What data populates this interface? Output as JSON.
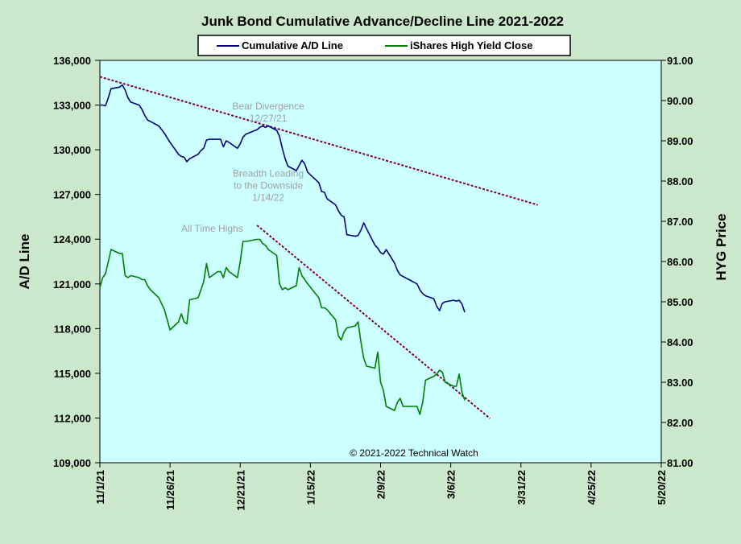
{
  "chart_data": {
    "type": "line",
    "title": "Junk Bond Cumulative Advance/Decline Line 2021-2022",
    "ylabel": "A/D Line",
    "y2label": "HYG Price",
    "ylim": [
      109000,
      136000
    ],
    "y2lim": [
      81.0,
      91.0
    ],
    "xlim": [
      "2021-11-01",
      "2022-05-20"
    ],
    "grid": false,
    "legend": "top-center",
    "colors": {
      "background": "#cce8cc",
      "plot_area": "#ccffff",
      "ad_line": "#00007f",
      "hyg_line": "#007f00",
      "trend_line": "#7f003f",
      "annotation": "#a0a0a0"
    },
    "x_ticks": [
      "11/1/21",
      "11/26/21",
      "12/21/21",
      "1/15/22",
      "2/9/22",
      "3/6/22",
      "3/31/22",
      "4/25/22",
      "5/20/22"
    ],
    "y_ticks": [
      "136,000",
      "133,000",
      "130,000",
      "127,000",
      "124,000",
      "121,000",
      "118,000",
      "115,000",
      "112,000",
      "109,000"
    ],
    "y2_ticks": [
      "91.00",
      "90.00",
      "89.00",
      "88.00",
      "87.00",
      "86.00",
      "85.00",
      "84.00",
      "83.00",
      "82.00",
      "81.00"
    ],
    "series": [
      {
        "name": "Cumulative A/D Line",
        "axis": "left",
        "points": [
          [
            "2021-11-01",
            133000
          ],
          [
            "2021-11-02",
            133000
          ],
          [
            "2021-11-03",
            132950
          ],
          [
            "2021-11-04",
            133500
          ],
          [
            "2021-11-05",
            134100
          ],
          [
            "2021-11-08",
            134200
          ],
          [
            "2021-11-09",
            134350
          ],
          [
            "2021-11-10",
            134000
          ],
          [
            "2021-11-11",
            133500
          ],
          [
            "2021-11-12",
            133200
          ],
          [
            "2021-11-15",
            133000
          ],
          [
            "2021-11-16",
            132700
          ],
          [
            "2021-11-17",
            132300
          ],
          [
            "2021-11-18",
            132000
          ],
          [
            "2021-11-19",
            131900
          ],
          [
            "2021-11-22",
            131600
          ],
          [
            "2021-11-23",
            131350
          ],
          [
            "2021-11-24",
            131100
          ],
          [
            "2021-11-26",
            130500
          ],
          [
            "2021-11-29",
            129700
          ],
          [
            "2021-11-30",
            129550
          ],
          [
            "2021-12-01",
            129500
          ],
          [
            "2021-12-02",
            129200
          ],
          [
            "2021-12-03",
            129400
          ],
          [
            "2021-12-06",
            129700
          ],
          [
            "2021-12-07",
            129950
          ],
          [
            "2021-12-08",
            130100
          ],
          [
            "2021-12-09",
            130650
          ],
          [
            "2021-12-10",
            130700
          ],
          [
            "2021-12-13",
            130700
          ],
          [
            "2021-12-14",
            130700
          ],
          [
            "2021-12-15",
            130200
          ],
          [
            "2021-12-16",
            130600
          ],
          [
            "2021-12-17",
            130500
          ],
          [
            "2021-12-20",
            130100
          ],
          [
            "2021-12-21",
            130400
          ],
          [
            "2021-12-22",
            130850
          ],
          [
            "2021-12-23",
            131050
          ],
          [
            "2021-12-27",
            131350
          ],
          [
            "2021-12-28",
            131500
          ],
          [
            "2021-12-29",
            131600
          ],
          [
            "2021-12-30",
            131500
          ],
          [
            "2021-12-31",
            131600
          ],
          [
            "2022-01-03",
            131300
          ],
          [
            "2022-01-04",
            130900
          ],
          [
            "2022-01-05",
            130100
          ],
          [
            "2022-01-06",
            129400
          ],
          [
            "2022-01-07",
            128900
          ],
          [
            "2022-01-10",
            128600
          ],
          [
            "2022-01-11",
            128950
          ],
          [
            "2022-01-12",
            129300
          ],
          [
            "2022-01-13",
            129050
          ],
          [
            "2022-01-14",
            128500
          ],
          [
            "2022-01-18",
            127800
          ],
          [
            "2022-01-19",
            127200
          ],
          [
            "2022-01-20",
            127150
          ],
          [
            "2022-01-21",
            126700
          ],
          [
            "2022-01-24",
            126300
          ],
          [
            "2022-01-25",
            125900
          ],
          [
            "2022-01-26",
            125600
          ],
          [
            "2022-01-27",
            125500
          ],
          [
            "2022-01-28",
            124300
          ],
          [
            "2022-01-31",
            124200
          ],
          [
            "2022-02-01",
            124250
          ],
          [
            "2022-02-02",
            124600
          ],
          [
            "2022-02-03",
            125100
          ],
          [
            "2022-02-04",
            124700
          ],
          [
            "2022-02-07",
            123600
          ],
          [
            "2022-02-08",
            123400
          ],
          [
            "2022-02-09",
            123100
          ],
          [
            "2022-02-10",
            123000
          ],
          [
            "2022-02-11",
            123300
          ],
          [
            "2022-02-14",
            122400
          ],
          [
            "2022-02-15",
            121900
          ],
          [
            "2022-02-16",
            121600
          ],
          [
            "2022-02-17",
            121500
          ],
          [
            "2022-02-18",
            121400
          ],
          [
            "2022-02-22",
            121000
          ],
          [
            "2022-02-23",
            120600
          ],
          [
            "2022-02-24",
            120350
          ],
          [
            "2022-02-25",
            120200
          ],
          [
            "2022-02-28",
            120000
          ],
          [
            "2022-03-01",
            119500
          ],
          [
            "2022-03-02",
            119200
          ],
          [
            "2022-03-03",
            119700
          ],
          [
            "2022-03-04",
            119800
          ],
          [
            "2022-03-07",
            119900
          ],
          [
            "2022-03-08",
            119850
          ],
          [
            "2022-03-09",
            119900
          ],
          [
            "2022-03-10",
            119650
          ],
          [
            "2022-03-11",
            119100
          ]
        ]
      },
      {
        "name": "iShares High Yield Close",
        "axis": "right",
        "points": [
          [
            "2021-11-01",
            85.35
          ],
          [
            "2021-11-02",
            85.6
          ],
          [
            "2021-11-03",
            85.7
          ],
          [
            "2021-11-04",
            86.0
          ],
          [
            "2021-11-05",
            86.3
          ],
          [
            "2021-11-08",
            86.2
          ],
          [
            "2021-11-09",
            86.2
          ],
          [
            "2021-11-10",
            85.65
          ],
          [
            "2021-11-11",
            85.6
          ],
          [
            "2021-11-12",
            85.65
          ],
          [
            "2021-11-15",
            85.6
          ],
          [
            "2021-11-16",
            85.55
          ],
          [
            "2021-11-17",
            85.55
          ],
          [
            "2021-11-18",
            85.4
          ],
          [
            "2021-11-19",
            85.3
          ],
          [
            "2021-11-22",
            85.1
          ],
          [
            "2021-11-23",
            84.95
          ],
          [
            "2021-11-24",
            84.8
          ],
          [
            "2021-11-26",
            84.3
          ],
          [
            "2021-11-29",
            84.5
          ],
          [
            "2021-11-30",
            84.7
          ],
          [
            "2021-12-01",
            84.5
          ],
          [
            "2021-12-02",
            84.45
          ],
          [
            "2021-12-03",
            85.05
          ],
          [
            "2021-12-06",
            85.1
          ],
          [
            "2021-12-07",
            85.3
          ],
          [
            "2021-12-08",
            85.5
          ],
          [
            "2021-12-09",
            85.95
          ],
          [
            "2021-12-10",
            85.6
          ],
          [
            "2021-12-13",
            85.75
          ],
          [
            "2021-12-14",
            85.75
          ],
          [
            "2021-12-15",
            85.6
          ],
          [
            "2021-12-16",
            85.85
          ],
          [
            "2021-12-17",
            85.75
          ],
          [
            "2021-12-20",
            85.6
          ],
          [
            "2021-12-21",
            86.0
          ],
          [
            "2021-12-22",
            86.5
          ],
          [
            "2021-12-23",
            86.5
          ],
          [
            "2021-12-27",
            86.55
          ],
          [
            "2021-12-28",
            86.55
          ],
          [
            "2021-12-29",
            86.45
          ],
          [
            "2021-12-30",
            86.4
          ],
          [
            "2021-12-31",
            86.3
          ],
          [
            "2022-01-03",
            86.15
          ],
          [
            "2022-01-04",
            85.45
          ],
          [
            "2022-01-05",
            85.3
          ],
          [
            "2022-01-06",
            85.35
          ],
          [
            "2022-01-07",
            85.3
          ],
          [
            "2022-01-10",
            85.4
          ],
          [
            "2022-01-11",
            85.85
          ],
          [
            "2022-01-12",
            85.65
          ],
          [
            "2022-01-13",
            85.55
          ],
          [
            "2022-01-14",
            85.45
          ],
          [
            "2022-01-18",
            85.1
          ],
          [
            "2022-01-19",
            84.85
          ],
          [
            "2022-01-20",
            84.85
          ],
          [
            "2022-01-21",
            84.8
          ],
          [
            "2022-01-24",
            84.55
          ],
          [
            "2022-01-25",
            84.15
          ],
          [
            "2022-01-26",
            84.05
          ],
          [
            "2022-01-27",
            84.25
          ],
          [
            "2022-01-28",
            84.35
          ],
          [
            "2022-01-31",
            84.4
          ],
          [
            "2022-02-01",
            84.5
          ],
          [
            "2022-02-02",
            84.0
          ],
          [
            "2022-02-03",
            83.6
          ],
          [
            "2022-02-04",
            83.4
          ],
          [
            "2022-02-07",
            83.35
          ],
          [
            "2022-02-08",
            83.75
          ],
          [
            "2022-02-09",
            83.0
          ],
          [
            "2022-02-10",
            82.8
          ],
          [
            "2022-02-11",
            82.4
          ],
          [
            "2022-02-14",
            82.3
          ],
          [
            "2022-02-15",
            82.5
          ],
          [
            "2022-02-16",
            82.6
          ],
          [
            "2022-02-17",
            82.4
          ],
          [
            "2022-02-18",
            82.4
          ],
          [
            "2022-02-22",
            82.4
          ],
          [
            "2022-02-23",
            82.2
          ],
          [
            "2022-02-24",
            82.5
          ],
          [
            "2022-02-25",
            83.05
          ],
          [
            "2022-02-28",
            83.15
          ],
          [
            "2022-03-01",
            83.2
          ],
          [
            "2022-03-02",
            83.3
          ],
          [
            "2022-03-03",
            83.25
          ],
          [
            "2022-03-04",
            83.0
          ],
          [
            "2022-03-07",
            82.9
          ],
          [
            "2022-03-08",
            82.9
          ],
          [
            "2022-03-09",
            83.2
          ],
          [
            "2022-03-10",
            82.75
          ],
          [
            "2022-03-11",
            82.55
          ]
        ]
      }
    ],
    "trendlines": [
      {
        "start": [
          "2021-11-01",
          134900
        ],
        "end": [
          "2022-04-06",
          126300
        ],
        "axis": "left"
      },
      {
        "start": [
          "2021-12-27",
          86.9
        ],
        "end": [
          "2022-03-20",
          82.1
        ],
        "axis": "right"
      }
    ],
    "annotations": [
      {
        "lines": [
          "Bear Divergence",
          "12/27/21"
        ],
        "at": [
          "2021-12-31",
          132700
        ],
        "anchor": "middle"
      },
      {
        "lines": [
          "Breadth Leading",
          "to the Downside",
          "1/14/22"
        ],
        "at": [
          "2021-12-31",
          128200
        ],
        "anchor": "middle"
      },
      {
        "lines": [
          "All Time Highs"
        ],
        "at": [
          "2021-12-11",
          124500
        ],
        "anchor": "middle"
      }
    ],
    "copyright": "© 2021-2022  Technical Watch"
  }
}
